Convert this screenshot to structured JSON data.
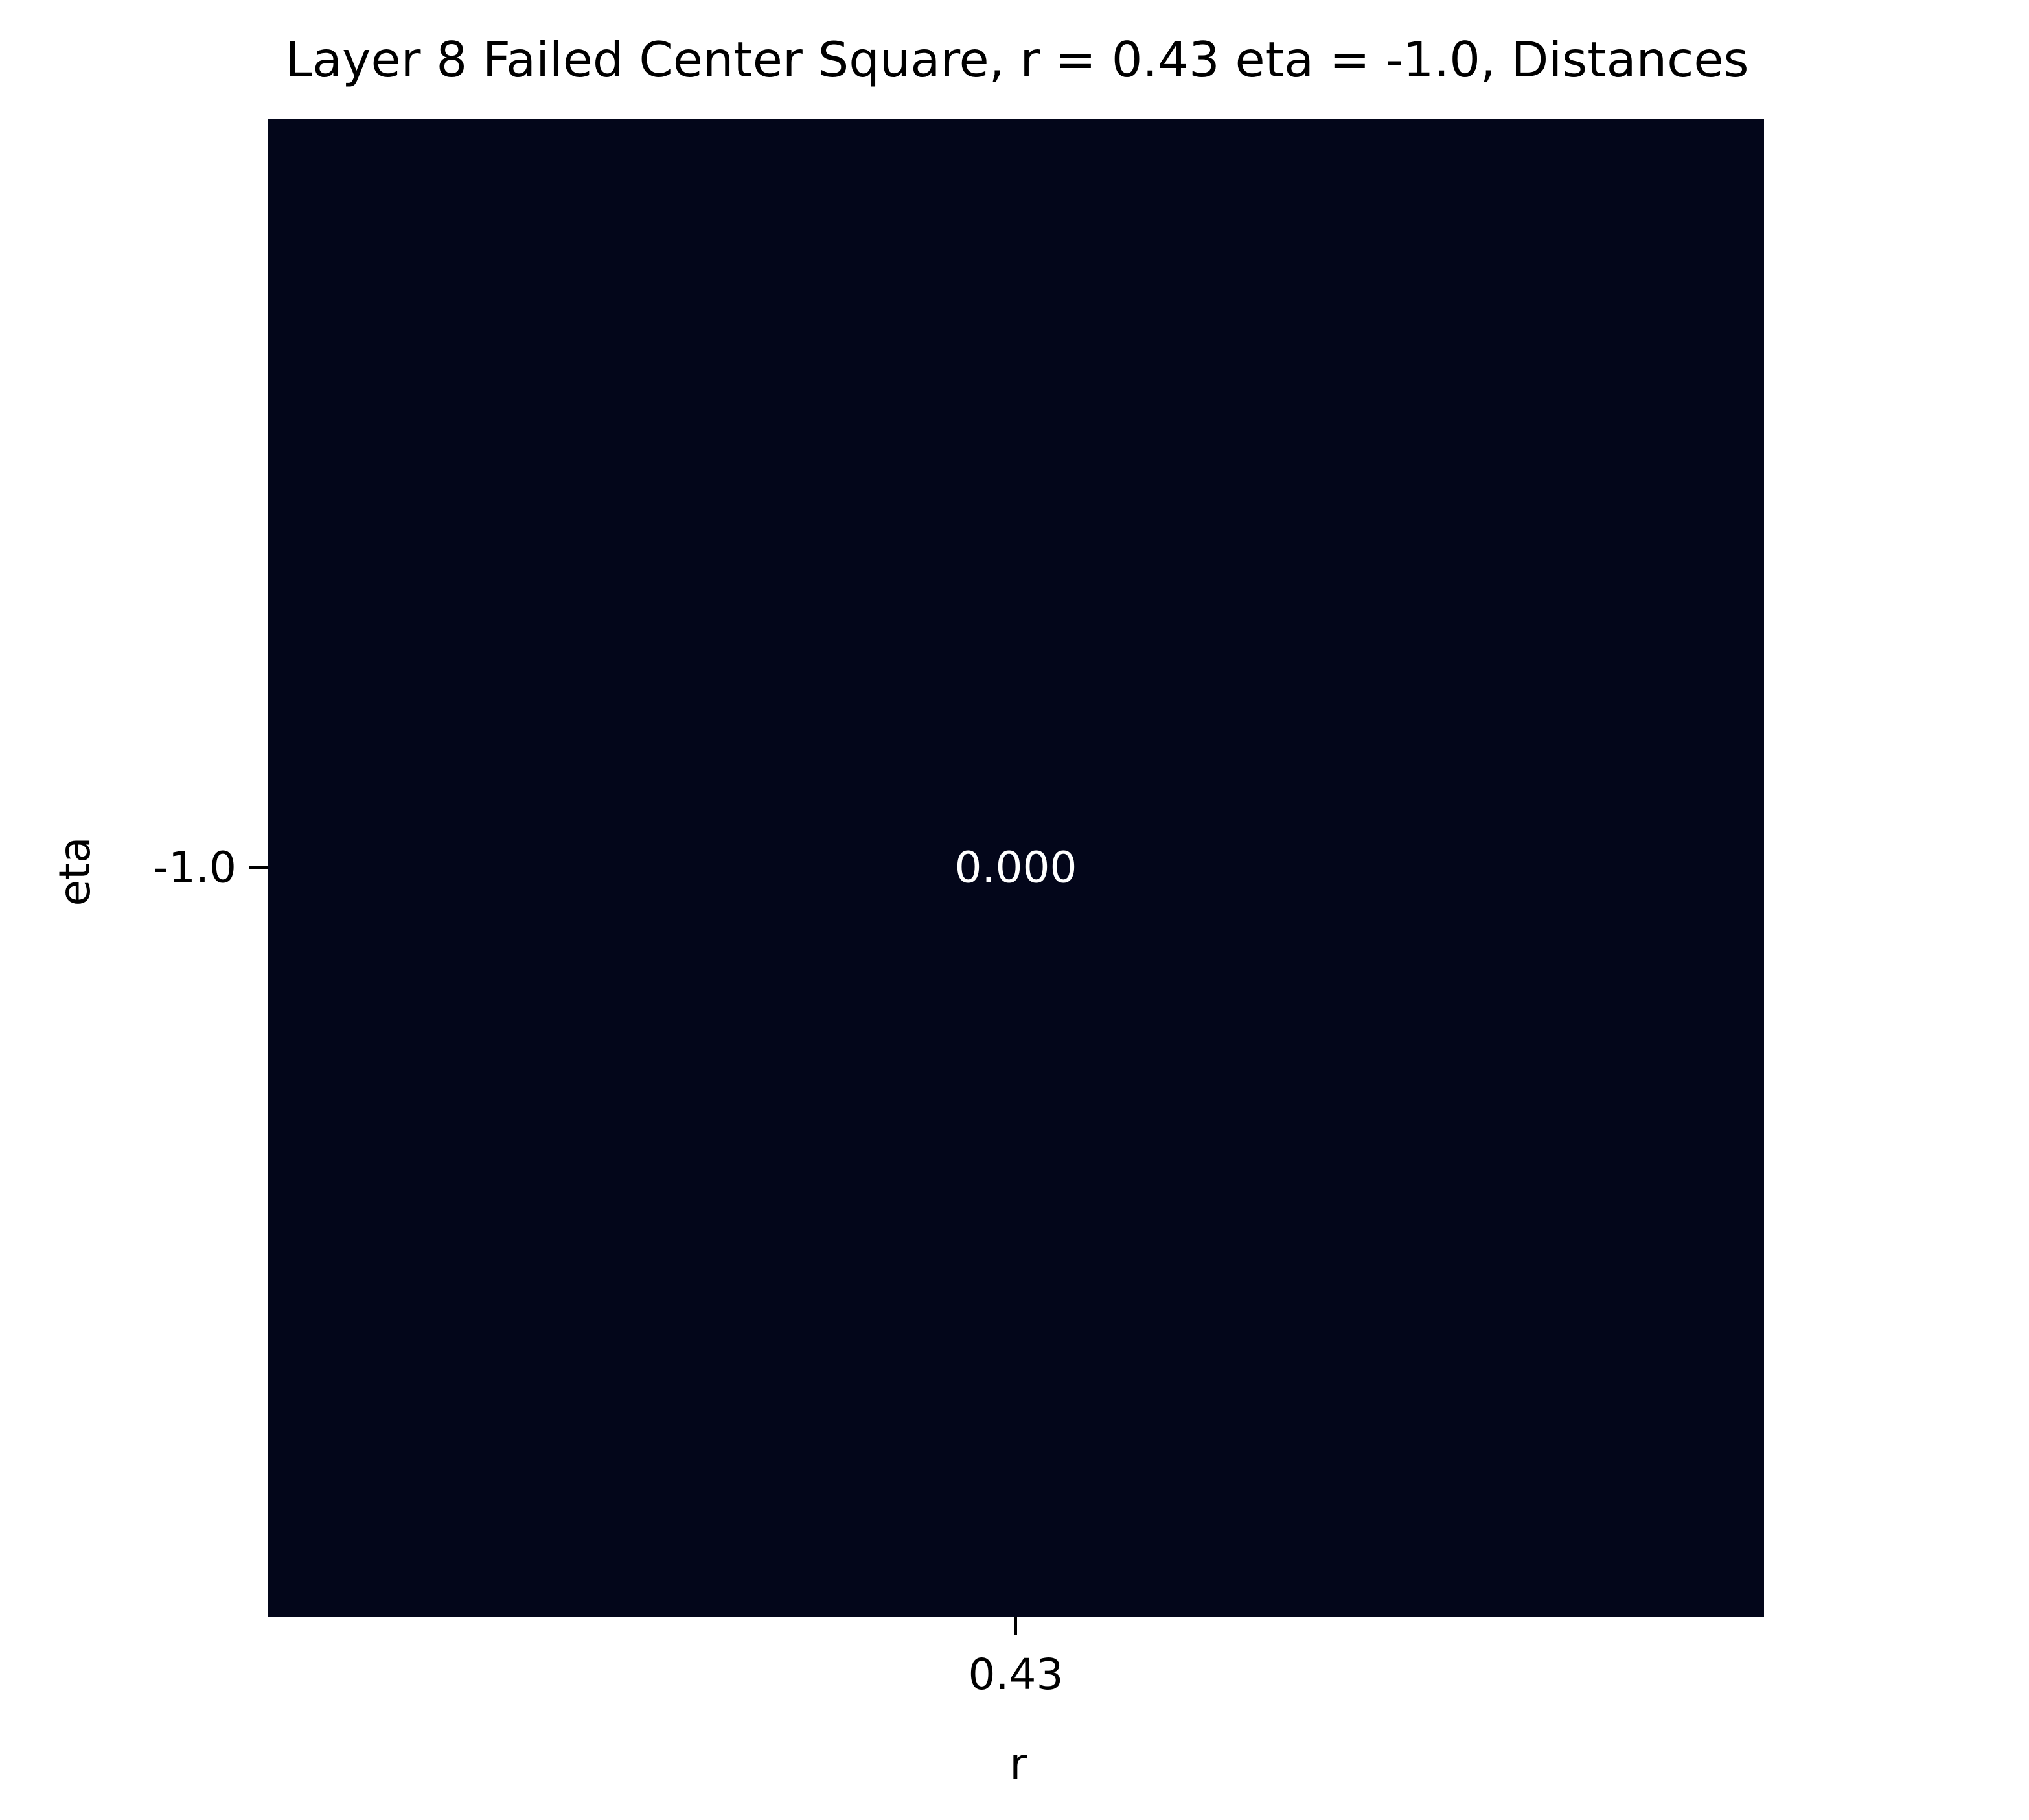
{
  "chart_data": {
    "type": "heatmap",
    "title": "Layer 8 Failed Center Square, r = 0.43 eta = -1.0, Distances",
    "xlabel": "r",
    "ylabel": "eta",
    "x_categories": [
      "0.43"
    ],
    "y_categories": [
      "-1.0"
    ],
    "values": [
      [
        0.0
      ]
    ],
    "cell_labels": [
      [
        "0.000"
      ]
    ],
    "cell_color": "#03061a",
    "annotation_color": "#ffffff",
    "grid": false,
    "legend": "none"
  }
}
